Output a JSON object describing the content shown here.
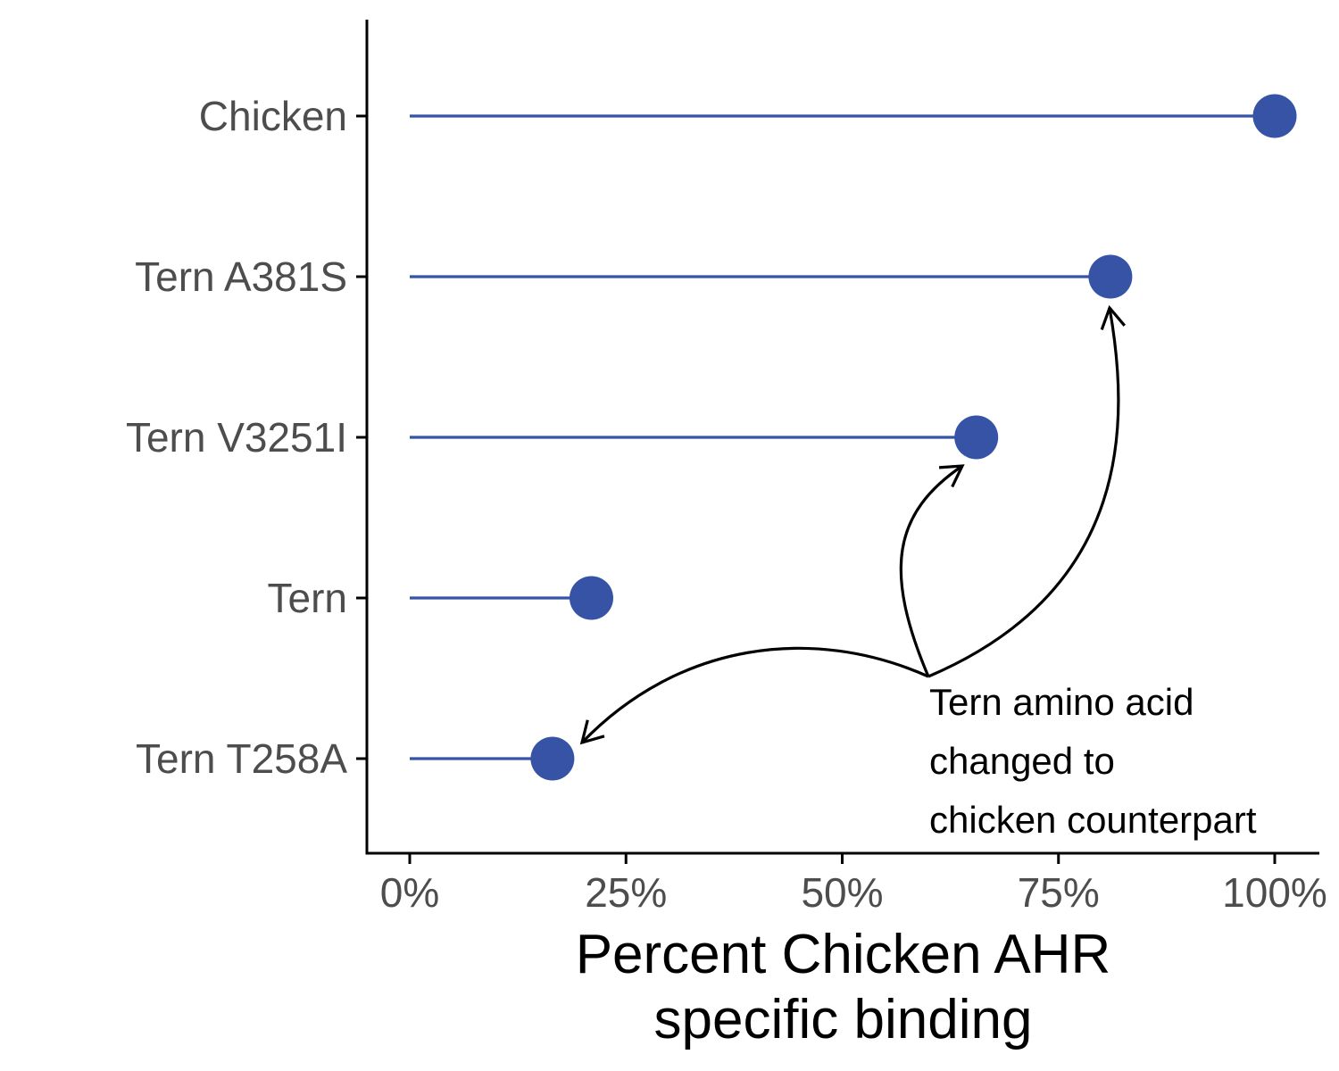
{
  "chart_data": {
    "type": "lollipop",
    "categories": [
      "Chicken",
      "Tern A381S",
      "Tern V3251I",
      "Tern",
      "Tern T258A"
    ],
    "values": [
      100,
      81,
      65.5,
      21,
      16.5
    ],
    "value_unit": "%",
    "xlabel_lines": [
      "Percent Chicken AHR",
      "specific binding"
    ],
    "xlim": [
      -5,
      105
    ],
    "xticks": [
      0,
      25,
      50,
      75,
      100
    ],
    "xtick_labels": [
      "0%",
      "25%",
      "50%",
      "75%",
      "100%"
    ],
    "grid": false,
    "colors": {
      "series": "#3653a5",
      "axis": "#000000",
      "tick_label": "#4d4d4d"
    },
    "annotation": {
      "lines": [
        "Tern amino acid",
        "changed to",
        "chicken counterpart"
      ],
      "arrows_to": [
        "Tern A381S",
        "Tern V3251I",
        "Tern T258A"
      ]
    }
  }
}
